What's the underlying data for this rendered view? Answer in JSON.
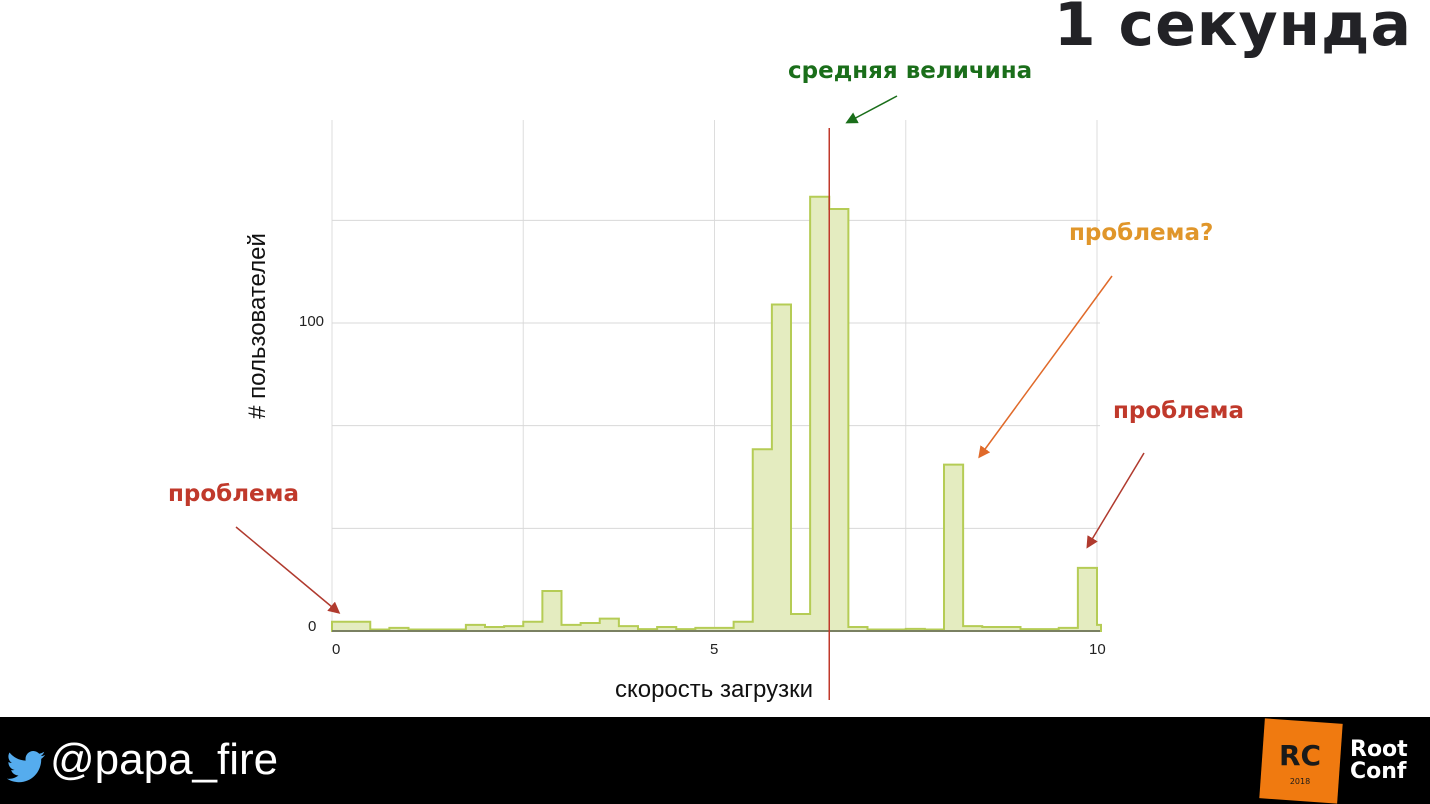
{
  "slide": {
    "title": "1 секунда",
    "annotations": {
      "mean": {
        "text": "средняя величина",
        "color": "#1a6e1a"
      },
      "problem_maybe": {
        "text": "проблема?",
        "color": "#e0962a"
      },
      "problem_right": {
        "text": "проблема",
        "color": "#c0392b"
      },
      "problem_left": {
        "text": "проблема",
        "color": "#c0392b"
      }
    }
  },
  "footer": {
    "handle": "@papa_fire",
    "twitter_color": "#55acee",
    "logo": {
      "mark": "RC",
      "year": "2018",
      "name_line1": "Root",
      "name_line2": "Conf",
      "color": "#f07a10"
    }
  },
  "chart_data": {
    "type": "bar",
    "subtype": "histogram",
    "title": "1 секунда",
    "xlabel": "скорость загрузки",
    "ylabel": "# пользователей",
    "xlim": [
      0,
      10
    ],
    "ylim": [
      0,
      166
    ],
    "x_ticks": [
      0,
      5,
      10
    ],
    "y_ticks": [
      0,
      100
    ],
    "grid": true,
    "bin_width": 0.25,
    "bin_starts": [
      0,
      0.25,
      0.5,
      0.75,
      1,
      1.25,
      1.5,
      1.75,
      2,
      2.25,
      2.5,
      2.75,
      3,
      3.25,
      3.5,
      3.75,
      4,
      4.25,
      4.5,
      4.75,
      5,
      5.25,
      5.5,
      5.75,
      6,
      6.25,
      6.5,
      6.75,
      7,
      7.25,
      7.5,
      7.75,
      8,
      8.25,
      8.5,
      8.75,
      9,
      9.25,
      9.5,
      9.75
    ],
    "values": [
      3,
      3,
      0.5,
      1,
      0.5,
      0.5,
      0.5,
      2,
      1.3,
      1.6,
      3,
      13,
      2,
      2.6,
      4,
      1.6,
      0.6,
      1.3,
      0.6,
      1,
      1,
      3,
      59,
      106,
      5.5,
      141,
      137,
      1.3,
      0.5,
      0.5,
      0.7,
      0.5,
      54,
      1.6,
      1.3,
      1.3,
      0.6,
      0.6,
      1,
      20.5
    ],
    "mean_line_x": 6.5,
    "fill_color": "#e4ecc0",
    "stroke_color": "#b5cc55",
    "mean_line_color": "#c0392b",
    "ticks": {
      "x0": "0",
      "x5": "5",
      "x10": "10",
      "y0": "0",
      "y100": "100"
    }
  }
}
